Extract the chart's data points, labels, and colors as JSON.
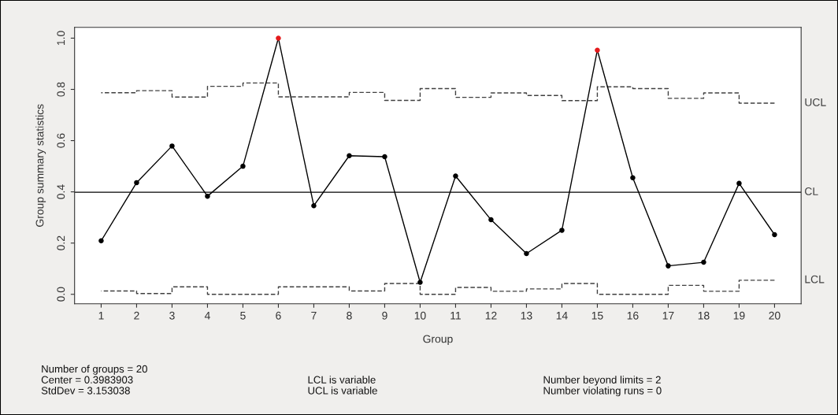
{
  "chart_data": {
    "type": "line",
    "xlabel": "Group",
    "ylabel": "Group summary statistics",
    "categories": [
      "1",
      "2",
      "3",
      "4",
      "5",
      "6",
      "7",
      "8",
      "9",
      "10",
      "11",
      "12",
      "13",
      "14",
      "15",
      "16",
      "17",
      "18",
      "19",
      "20"
    ],
    "series": [
      {
        "color": "#000000",
        "marker": "circle",
        "line_style": "solid",
        "values": [
          0.209,
          0.436,
          0.579,
          0.383,
          0.5,
          1.0,
          0.346,
          0.541,
          0.537,
          0.047,
          0.462,
          0.291,
          0.159,
          0.25,
          0.953,
          0.455,
          0.111,
          0.125,
          0.433,
          0.233
        ],
        "colors": [
          "#000000",
          "#000000",
          "#000000",
          "#000000",
          "#000000",
          "#e41a1c",
          "#000000",
          "#000000",
          "#000000",
          "#000000",
          "#000000",
          "#000000",
          "#000000",
          "#000000",
          "#e41a1c",
          "#000000",
          "#000000",
          "#000000",
          "#000000",
          "#000000"
        ]
      },
      {
        "type": "step",
        "name": "UCL",
        "color": "#404040",
        "line_style": "dashed",
        "values": [
          0.787,
          0.795,
          0.77,
          0.812,
          0.825,
          0.771,
          0.771,
          0.788,
          0.757,
          0.803,
          0.769,
          0.786,
          0.776,
          0.756,
          0.81,
          0.803,
          0.765,
          0.786,
          0.746,
          0.746
        ]
      },
      {
        "type": "step",
        "name": "LCL",
        "color": "#404040",
        "line_style": "dashed",
        "values": [
          0.013,
          0.003,
          0.029,
          0.0,
          0.0,
          0.029,
          0.029,
          0.013,
          0.042,
          0.0,
          0.027,
          0.012,
          0.021,
          0.042,
          0.0,
          0.0,
          0.035,
          0.012,
          0.055,
          0.055
        ]
      }
    ],
    "ref_lines": [
      {
        "axis": "y",
        "value": 0.3983903,
        "label": "CL",
        "color": "#000000",
        "line_style": "solid"
      }
    ],
    "ylim": [
      -0.037,
      1.042
    ],
    "yticks": [
      {
        "value": 0,
        "label": "0.0"
      },
      {
        "value": 0.2,
        "label": "0.2"
      },
      {
        "value": 0.4,
        "label": "0.4"
      },
      {
        "value": 0.6,
        "label": "0.6"
      },
      {
        "value": 0.8,
        "label": "0.8"
      },
      {
        "value": 1.0,
        "label": "1.0"
      }
    ],
    "grid": false,
    "legend": false,
    "annotations": [
      "Number of groups = 20\nCenter = 0.3983903\nStdDev = 3.153038",
      "LCL is variable\nUCL is variable",
      "Number beyond limits = 2\nNumber violating runs = 0"
    ]
  }
}
